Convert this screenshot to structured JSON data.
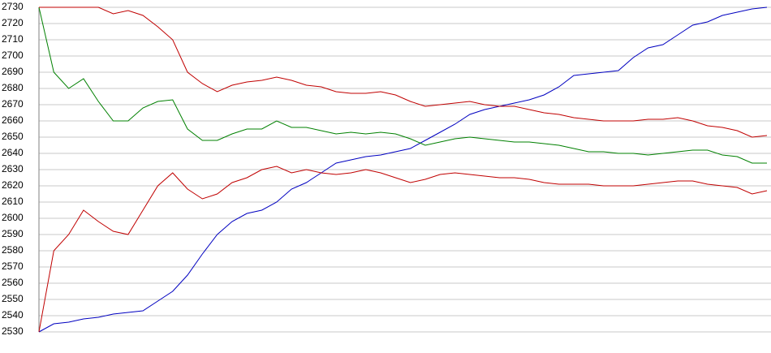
{
  "chart_data": {
    "type": "line",
    "ylim": [
      2530,
      2730
    ],
    "yticks": [
      2530,
      2540,
      2550,
      2560,
      2570,
      2580,
      2590,
      2600,
      2610,
      2620,
      2630,
      2640,
      2650,
      2660,
      2670,
      2680,
      2690,
      2700,
      2710,
      2720,
      2730
    ],
    "grid": true,
    "series": [
      {
        "color": "#0000c0",
        "values": [
          2530,
          2535,
          2536,
          2538,
          2539,
          2541,
          2542,
          2543,
          2549,
          2555,
          2565,
          2578,
          2590,
          2598,
          2603,
          2605,
          2610,
          2618,
          2622,
          2628,
          2634,
          2636,
          2638,
          2639,
          2641,
          2643,
          2648,
          2653,
          2658,
          2664,
          2667,
          2669,
          2671,
          2673,
          2676,
          2681,
          2688,
          2689,
          2690,
          2691,
          2699,
          2705,
          2707,
          2713,
          2719,
          2721,
          2725,
          2727,
          2729,
          2730
        ]
      },
      {
        "color": "#008000",
        "values": [
          2730,
          2690,
          2680,
          2686,
          2672,
          2660,
          2660,
          2668,
          2672,
          2673,
          2655,
          2648,
          2648,
          2652,
          2655,
          2655,
          2660,
          2656,
          2656,
          2654,
          2652,
          2653,
          2652,
          2653,
          2652,
          2649,
          2645,
          2647,
          2649,
          2650,
          2649,
          2648,
          2647,
          2647,
          2646,
          2645,
          2643,
          2641,
          2641,
          2640,
          2640,
          2639,
          2640,
          2641,
          2642,
          2642,
          2639,
          2638,
          2634,
          2634
        ]
      },
      {
        "color": "#c00000",
        "values": [
          2730,
          2730,
          2730,
          2730,
          2730,
          2726,
          2728,
          2725,
          2718,
          2710,
          2690,
          2683,
          2678,
          2682,
          2684,
          2685,
          2687,
          2685,
          2682,
          2681,
          2678,
          2677,
          2677,
          2678,
          2676,
          2672,
          2669,
          2670,
          2671,
          2672,
          2670,
          2669,
          2669,
          2667,
          2665,
          2664,
          2662,
          2661,
          2660,
          2660,
          2660,
          2661,
          2661,
          2662,
          2660,
          2657,
          2656,
          2654,
          2650,
          2651
        ]
      },
      {
        "color": "#c00000",
        "values": [
          2530,
          2580,
          2590,
          2605,
          2598,
          2592,
          2590,
          2605,
          2620,
          2628,
          2618,
          2612,
          2615,
          2622,
          2625,
          2630,
          2632,
          2628,
          2630,
          2628,
          2627,
          2628,
          2630,
          2628,
          2625,
          2622,
          2624,
          2627,
          2628,
          2627,
          2626,
          2625,
          2625,
          2624,
          2622,
          2621,
          2621,
          2621,
          2620,
          2620,
          2620,
          2621,
          2622,
          2623,
          2623,
          2621,
          2620,
          2619,
          2615,
          2617
        ]
      }
    ]
  }
}
